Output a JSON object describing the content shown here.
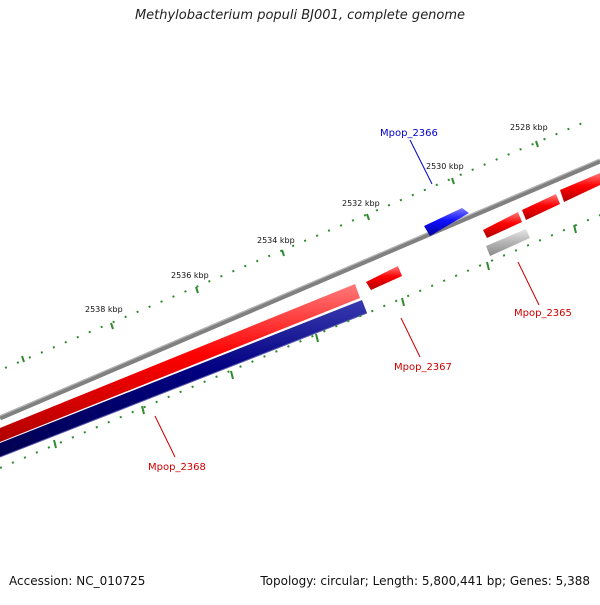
{
  "title": "Methylobacterium populi BJ001, complete genome",
  "footer": {
    "accession": "Accession: NC_010725",
    "summary": "Topology: circular; Length: 5,800,441 bp; Genes: 5,388"
  },
  "scale_labels": [
    "2528 kbp",
    "2530 kbp",
    "2532 kbp",
    "2534 kbp",
    "2536 kbp",
    "2538 kbp"
  ],
  "gene_labels": [
    {
      "text": "Mpop_2366",
      "color": "#0000cc"
    },
    {
      "text": "Mpop_2365",
      "color": "#cc0000"
    },
    {
      "text": "Mpop_2367",
      "color": "#cc0000"
    },
    {
      "text": "Mpop_2368",
      "color": "#cc0000"
    }
  ],
  "colors": {
    "forward_gene": "#ff0000",
    "reverse_gene_blue": "#1010ff",
    "long_dark": "#000080",
    "pseudo": "#b0b0b0",
    "backbone": "#808080",
    "ticks": "#2e8b2e"
  }
}
